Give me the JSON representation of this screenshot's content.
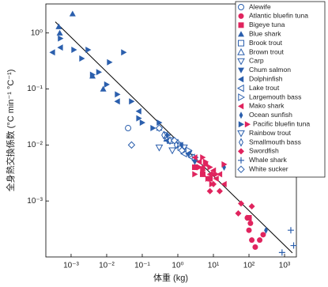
{
  "chart_data": {
    "type": "scatter",
    "x_label": "体重 (kg)",
    "y_label": "全身熱交換係数 (°C min⁻¹ °C⁻¹)",
    "x_scale": "log",
    "y_scale": "log",
    "xlim": [
      0.000195,
      2150
    ],
    "ylim": [
      0.0001,
      3.3
    ],
    "xticks": [
      {
        "value": 0.001,
        "label": "10⁻³"
      },
      {
        "value": 0.01,
        "label": "10⁻²"
      },
      {
        "value": 0.1,
        "label": "10⁻¹"
      },
      {
        "value": 1,
        "label": "10⁰"
      },
      {
        "value": 10,
        "label": "10¹"
      },
      {
        "value": 100,
        "label": "10²"
      },
      {
        "value": 1000,
        "label": "10³"
      }
    ],
    "yticks": [
      {
        "value": 0.001,
        "label": "10⁻³"
      },
      {
        "value": 0.01,
        "label": "10⁻²"
      },
      {
        "value": 0.1,
        "label": "10⁻¹"
      },
      {
        "value": 1,
        "label": "10⁰"
      }
    ],
    "legend": "upper right",
    "fit_line": {
      "color": "#000000",
      "x": [
        0.00036,
        1660
      ],
      "y": [
        1.58,
        0.000118
      ]
    },
    "series": [
      {
        "name": "Alewife",
        "marker": "circle-open",
        "color": "#2b5fad",
        "x": [
          0.04
        ],
        "values": [
          0.02
        ]
      },
      {
        "name": "Atlantic bluefin tuna",
        "marker": "circle",
        "color": "#e0245e",
        "x": [
          100,
          120,
          150,
          200,
          90,
          110,
          250
        ],
        "values": [
          0.0003,
          0.0002,
          0.00015,
          0.0002,
          0.0005,
          0.0004,
          0.00025
        ]
      },
      {
        "name": "Bigeye tuna",
        "marker": "square",
        "color": "#e0245e",
        "x": [
          3,
          5,
          8,
          100
        ],
        "values": [
          0.004,
          0.003,
          0.0025,
          0.0005
        ]
      },
      {
        "name": "Blue shark",
        "marker": "triangle-up",
        "color": "#2b5fad",
        "x": [
          0.0011,
          0.00045,
          0.00048,
          0.004,
          0.008,
          0.3
        ],
        "values": [
          2.2,
          1.3,
          1.0,
          0.17,
          0.1,
          0.02
        ]
      },
      {
        "name": "Brook trout",
        "marker": "square-open",
        "color": "#2b5fad",
        "x": [
          0.6,
          1.2
        ],
        "values": [
          0.012,
          0.009
        ]
      },
      {
        "name": "Brown trout",
        "marker": "triangle-up-open",
        "color": "#2b5fad",
        "x": [
          0.5,
          1
        ],
        "values": [
          0.013,
          0.011
        ]
      },
      {
        "name": "Carp",
        "marker": "triangle-down-open",
        "color": "#2b5fad",
        "x": [
          1,
          1.5,
          2
        ],
        "values": [
          0.01,
          0.009,
          0.007
        ]
      },
      {
        "name": "Chum salmon",
        "marker": "triangle-down",
        "color": "#2b5fad",
        "x": [
          2,
          3
        ],
        "values": [
          0.007,
          0.005
        ]
      },
      {
        "name": "Dolphinfish",
        "marker": "triangle-left",
        "color": "#2b5fad",
        "x": [
          0.0003,
          0.0005,
          0.02,
          0.08,
          0.5,
          1.2
        ],
        "values": [
          0.45,
          0.55,
          0.06,
          0.04,
          0.012,
          0.01
        ]
      },
      {
        "name": "Lake trout",
        "marker": "triangle-left-open",
        "color": "#2b5fad",
        "x": [
          1.5,
          2.5
        ],
        "values": [
          0.007,
          0.006
        ]
      },
      {
        "name": "Largemouth bass",
        "marker": "triangle-right-open",
        "color": "#2b5fad",
        "x": [
          0.5,
          1,
          1.5,
          2,
          3
        ],
        "values": [
          0.015,
          0.01,
          0.008,
          0.008,
          0.006
        ]
      },
      {
        "name": "Mako shark",
        "marker": "triangle-left",
        "color": "#e0245e",
        "x": [
          3,
          4,
          5,
          6,
          8,
          10,
          12,
          15,
          20
        ],
        "values": [
          0.006,
          0.005,
          0.004,
          0.0045,
          0.003,
          0.0035,
          0.0025,
          0.003,
          0.002
        ]
      },
      {
        "name": "Ocean sunfish",
        "marker": "thin-diamond",
        "color": "#2b5fad",
        "x": [
          0.5,
          20,
          300
        ],
        "values": [
          0.015,
          0.004,
          0.0003
        ]
      },
      {
        "name": "Pacific bluefin tuna",
        "marker": "triangle-right",
        "color": "#2b5fad",
        "x": [
          0.0005,
          0.0012,
          0.002,
          0.003,
          0.004,
          0.006,
          0.01,
          0.012,
          0.02,
          0.03,
          0.05,
          0.08,
          0.1,
          0.2,
          0.3,
          4,
          5,
          6,
          8,
          10,
          3,
          4,
          5,
          7,
          9,
          12,
          20,
          100
        ],
        "values": [
          0.8,
          0.5,
          0.35,
          0.5,
          0.18,
          0.2,
          0.12,
          0.3,
          0.08,
          0.45,
          0.06,
          0.03,
          0.025,
          0.02,
          0.025,
          0.004,
          0.006,
          0.005,
          0.004,
          0.003,
          0.003,
          0.004,
          0.0035,
          0.0025,
          0.002,
          0.003,
          0.0045,
          0.0005
        ],
        "point_colors": [
          "#2b5fad",
          "#2b5fad",
          "#2b5fad",
          "#2b5fad",
          "#2b5fad",
          "#2b5fad",
          "#2b5fad",
          "#2b5fad",
          "#2b5fad",
          "#2b5fad",
          "#2b5fad",
          "#2b5fad",
          "#2b5fad",
          "#2b5fad",
          "#2b5fad",
          "#e0245e",
          "#e0245e",
          "#e0245e",
          "#e0245e",
          "#e0245e",
          "#e0245e",
          "#e0245e",
          "#e0245e",
          "#e0245e",
          "#e0245e",
          "#e0245e",
          "#e0245e",
          "#e0245e"
        ]
      },
      {
        "name": "Rainbow trout",
        "marker": "triangle-down-open",
        "color": "#2b5fad",
        "x": [
          0.3,
          0.7
        ],
        "values": [
          0.009,
          0.008
        ]
      },
      {
        "name": "Smallmouth bass",
        "marker": "thin-diamond-open",
        "color": "#2b5fad",
        "x": [
          0.4,
          0.6,
          0.9
        ],
        "values": [
          0.015,
          0.012,
          0.01
        ]
      },
      {
        "name": "Swordfish",
        "marker": "diamond",
        "color": "#e0245e",
        "x": [
          10,
          8,
          15,
          120,
          50,
          60
        ],
        "values": [
          0.002,
          0.0015,
          0.0015,
          0.0008,
          0.0006,
          0.0009
        ]
      },
      {
        "name": "Whale shark",
        "marker": "plus",
        "color": "#2b5fad",
        "x": [
          1500,
          1800,
          850
        ],
        "values": [
          0.0003,
          0.00016,
          0.00012
        ]
      },
      {
        "name": "White sucker",
        "marker": "diamond-open",
        "color": "#2b5fad",
        "x": [
          0.05,
          0.3,
          0.8,
          1.3
        ],
        "values": [
          0.01,
          0.02,
          0.012,
          0.008
        ]
      }
    ]
  }
}
